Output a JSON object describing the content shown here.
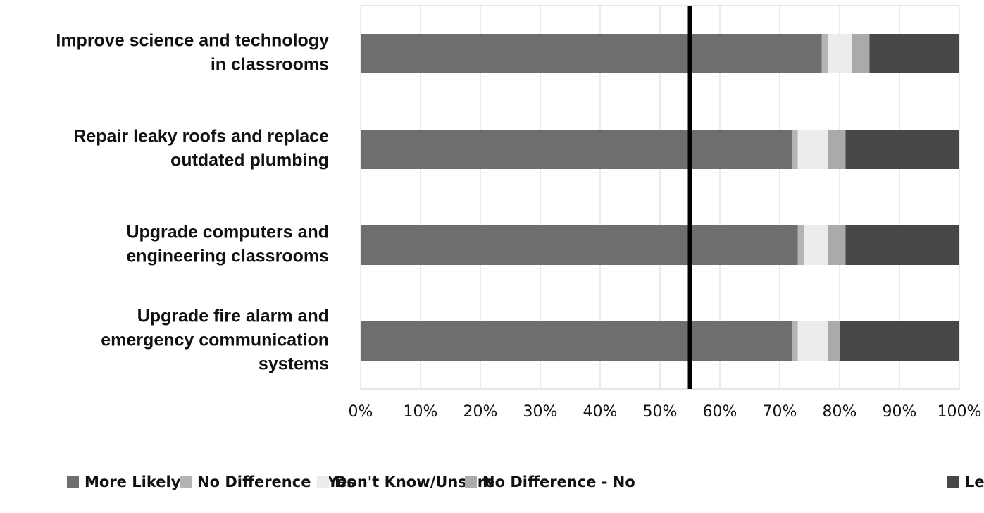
{
  "chart_data": {
    "type": "stacked_barh",
    "categories": [
      [
        "Improve science and technology",
        "in classrooms"
      ],
      [
        "Repair leaky roofs and replace",
        "outdated plumbing"
      ],
      [
        "Upgrade computers and",
        "engineering classrooms"
      ],
      [
        "Upgrade fire alarm and",
        "emergency communication",
        "systems"
      ]
    ],
    "series": [
      {
        "name": "More Likely",
        "color": "#6e6e6e",
        "values": [
          77,
          72,
          73,
          72
        ]
      },
      {
        "name": "No Difference - Yes",
        "color": "#b4b4b4",
        "values": [
          1,
          1,
          1,
          1
        ]
      },
      {
        "name": "Don't Know/Unsure",
        "color": "#ececec",
        "values": [
          4,
          5,
          4,
          5
        ]
      },
      {
        "name": "No Difference - No",
        "color": "#aaaaaa",
        "values": [
          3,
          3,
          3,
          2
        ]
      },
      {
        "name": "Less Likely",
        "color": "#474747",
        "values": [
          15,
          19,
          19,
          20
        ]
      }
    ],
    "xlim": [
      0,
      100
    ],
    "xticks": [
      {
        "value": 0,
        "label": "0%"
      },
      {
        "value": 10,
        "label": "10%"
      },
      {
        "value": 20,
        "label": "20%"
      },
      {
        "value": 30,
        "label": "30%"
      },
      {
        "value": 40,
        "label": "40%"
      },
      {
        "value": 50,
        "label": "50%"
      },
      {
        "value": 60,
        "label": "60%"
      },
      {
        "value": 70,
        "label": "70%"
      },
      {
        "value": 80,
        "label": "80%"
      },
      {
        "value": 90,
        "label": "90%"
      },
      {
        "value": 100,
        "label": "100%"
      }
    ],
    "grid": true,
    "reference_line": 55,
    "legend": "bottom"
  }
}
